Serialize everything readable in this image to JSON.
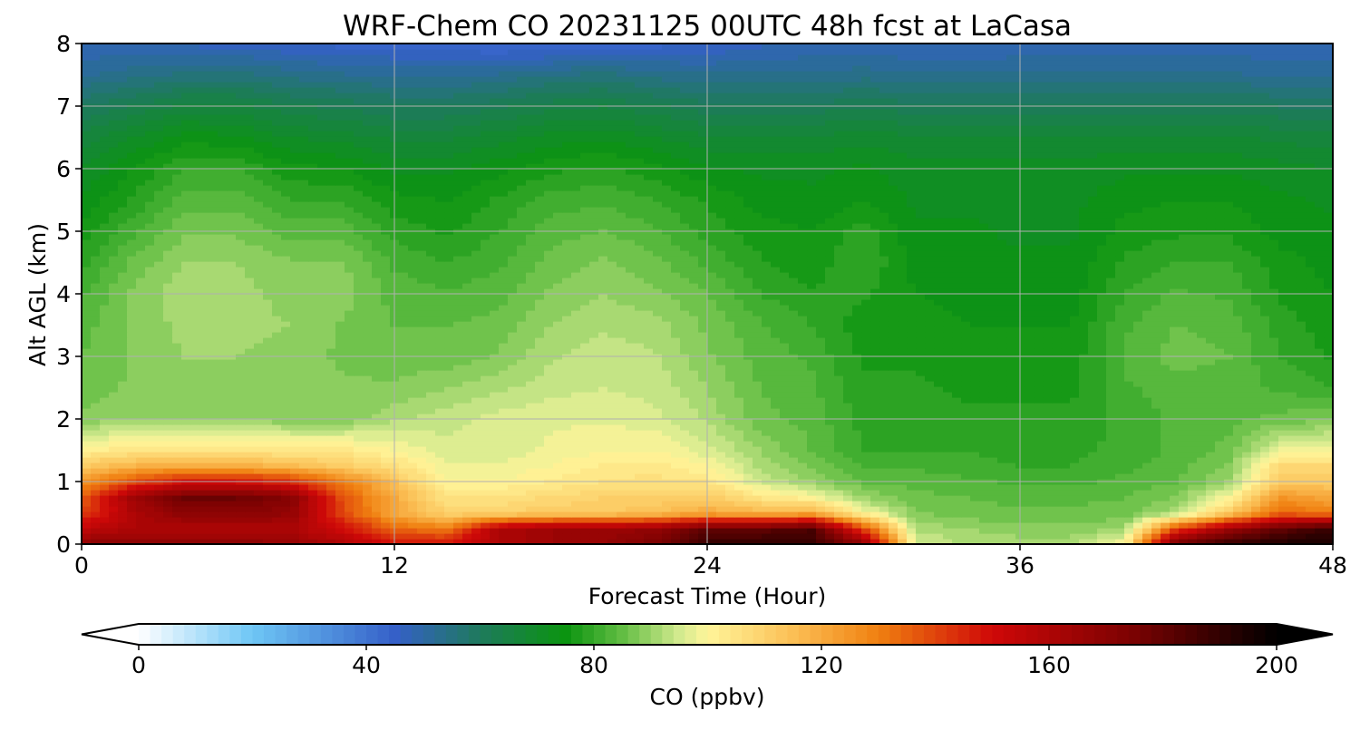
{
  "chart_data": {
    "type": "heatmap",
    "title": "WRF-Chem CO  20231125 00UTC 48h fcst at LaCasa",
    "xlabel": "Forecast Time (Hour)",
    "ylabel": "Alt AGL (km)",
    "xlim": [
      0,
      48
    ],
    "ylim": [
      0,
      8
    ],
    "xticks": [
      "0",
      "12",
      "24",
      "36",
      "48"
    ],
    "xtick_values": [
      0,
      12,
      24,
      36,
      48
    ],
    "yticks": [
      "0",
      "1",
      "2",
      "3",
      "4",
      "5",
      "6",
      "7",
      "8"
    ],
    "ytick_values": [
      0,
      1,
      2,
      3,
      4,
      5,
      6,
      7,
      8
    ],
    "grid": true,
    "colorbar": {
      "label": "CO  (ppbv)",
      "range": [
        0,
        200
      ],
      "extend": "both",
      "ticks": [
        "0",
        "40",
        "80",
        "120",
        "160",
        "200"
      ],
      "tick_values": [
        0,
        40,
        80,
        120,
        160,
        200
      ],
      "colormap_stops": [
        {
          "value": 0,
          "color": "#ffffff"
        },
        {
          "value": 20,
          "color": "#6ec6f5"
        },
        {
          "value": 45,
          "color": "#3560c8"
        },
        {
          "value": 60,
          "color": "#1e7a5c"
        },
        {
          "value": 75,
          "color": "#0b9410"
        },
        {
          "value": 85,
          "color": "#62bd43"
        },
        {
          "value": 95,
          "color": "#d2ea8e"
        },
        {
          "value": 100,
          "color": "#fff59a"
        },
        {
          "value": 115,
          "color": "#fbbf55"
        },
        {
          "value": 130,
          "color": "#f08010"
        },
        {
          "value": 150,
          "color": "#cf0808"
        },
        {
          "value": 175,
          "color": "#7a0202"
        },
        {
          "value": 200,
          "color": "#000000"
        }
      ]
    },
    "hours": [
      0,
      2,
      4,
      6,
      8,
      10,
      12,
      14,
      16,
      18,
      20,
      22,
      24,
      26,
      28,
      30,
      32,
      34,
      36,
      38,
      40,
      42,
      44,
      46,
      48
    ],
    "altitudes_km": [
      0,
      0.25,
      0.5,
      0.75,
      1,
      1.25,
      1.5,
      2,
      2.5,
      3,
      3.5,
      4,
      4.5,
      5,
      5.5,
      6,
      6.5,
      7,
      7.5,
      8
    ],
    "values_ppbv": [
      [
        170,
        170,
        170,
        170,
        168,
        160,
        150,
        150,
        160,
        165,
        168,
        175,
        190,
        190,
        190,
        170,
        96,
        92,
        92,
        92,
        100,
        180,
        190,
        195,
        195
      ],
      [
        155,
        160,
        160,
        160,
        160,
        150,
        135,
        130,
        160,
        165,
        165,
        168,
        180,
        180,
        185,
        140,
        92,
        90,
        88,
        88,
        90,
        140,
        165,
        180,
        190
      ],
      [
        140,
        160,
        170,
        170,
        168,
        140,
        120,
        110,
        110,
        112,
        112,
        115,
        120,
        118,
        120,
        100,
        88,
        86,
        86,
        86,
        86,
        92,
        112,
        135,
        130
      ],
      [
        135,
        165,
        178,
        178,
        172,
        138,
        120,
        105,
        105,
        108,
        110,
        110,
        112,
        105,
        100,
        90,
        86,
        85,
        84,
        84,
        85,
        88,
        100,
        125,
        120
      ],
      [
        125,
        140,
        150,
        150,
        145,
        130,
        115,
        100,
        100,
        103,
        105,
        106,
        105,
        95,
        90,
        85,
        84,
        83,
        82,
        82,
        83,
        85,
        90,
        112,
        112
      ],
      [
        112,
        118,
        120,
        120,
        116,
        112,
        106,
        98,
        98,
        100,
        103,
        104,
        100,
        92,
        87,
        82,
        82,
        81,
        80,
        80,
        82,
        84,
        88,
        108,
        108
      ],
      [
        102,
        104,
        105,
        104,
        104,
        104,
        100,
        96,
        96,
        98,
        100,
        100,
        96,
        90,
        85,
        80,
        80,
        80,
        79,
        79,
        81,
        83,
        86,
        98,
        100
      ],
      [
        88,
        90,
        90,
        90,
        88,
        88,
        92,
        94,
        96,
        97,
        97,
        96,
        92,
        86,
        84,
        79,
        79,
        78,
        78,
        78,
        81,
        83,
        84,
        86,
        87
      ],
      [
        86,
        88,
        89,
        90,
        89,
        88,
        88,
        90,
        92,
        94,
        95,
        94,
        90,
        85,
        83,
        78,
        78,
        77,
        77,
        77,
        82,
        84,
        84,
        82,
        80
      ],
      [
        85,
        88,
        90,
        90,
        89,
        87,
        86,
        86,
        88,
        92,
        94,
        93,
        88,
        84,
        82,
        77,
        77,
        76,
        76,
        76,
        83,
        86,
        85,
        80,
        77
      ],
      [
        84,
        88,
        91,
        91,
        90,
        87,
        85,
        85,
        86,
        90,
        92,
        91,
        87,
        83,
        80,
        76,
        76,
        75,
        75,
        75,
        82,
        85,
        84,
        79,
        76
      ],
      [
        82,
        88,
        92,
        91,
        89,
        89,
        84,
        83,
        84,
        88,
        90,
        88,
        85,
        80,
        78,
        78,
        75,
        74,
        74,
        74,
        80,
        83,
        82,
        77,
        75
      ],
      [
        79,
        86,
        90,
        90,
        88,
        88,
        82,
        80,
        82,
        86,
        88,
        86,
        82,
        78,
        76,
        80,
        74,
        73,
        73,
        73,
        78,
        80,
        80,
        76,
        74
      ],
      [
        76,
        82,
        87,
        87,
        84,
        84,
        79,
        77,
        80,
        84,
        85,
        83,
        79,
        76,
        75,
        79,
        73,
        73,
        72,
        72,
        76,
        77,
        77,
        74,
        73
      ],
      [
        73,
        78,
        84,
        84,
        80,
        80,
        76,
        75,
        78,
        81,
        82,
        80,
        77,
        74,
        73,
        75,
        72,
        72,
        72,
        72,
        74,
        75,
        75,
        73,
        72
      ],
      [
        70,
        75,
        80,
        80,
        76,
        75,
        72,
        72,
        74,
        77,
        78,
        76,
        73,
        72,
        72,
        73,
        71,
        71,
        71,
        71,
        72,
        72,
        72,
        71,
        70
      ],
      [
        66,
        70,
        74,
        73,
        70,
        69,
        67,
        67,
        69,
        71,
        72,
        70,
        68,
        68,
        68,
        69,
        68,
        68,
        68,
        68,
        68,
        68,
        68,
        67,
        66
      ],
      [
        60,
        63,
        66,
        66,
        63,
        62,
        60,
        60,
        62,
        64,
        65,
        63,
        61,
        61,
        61,
        62,
        61,
        61,
        61,
        61,
        61,
        61,
        61,
        60,
        59
      ],
      [
        52,
        54,
        56,
        56,
        54,
        53,
        52,
        52,
        53,
        55,
        56,
        54,
        53,
        53,
        53,
        54,
        53,
        53,
        53,
        53,
        53,
        53,
        53,
        52,
        52
      ],
      [
        48,
        48,
        47,
        46,
        45,
        44,
        44,
        43,
        42,
        42,
        43,
        44,
        45,
        47,
        48,
        48,
        47,
        47,
        48,
        48,
        48,
        48,
        48,
        48,
        48
      ]
    ]
  }
}
